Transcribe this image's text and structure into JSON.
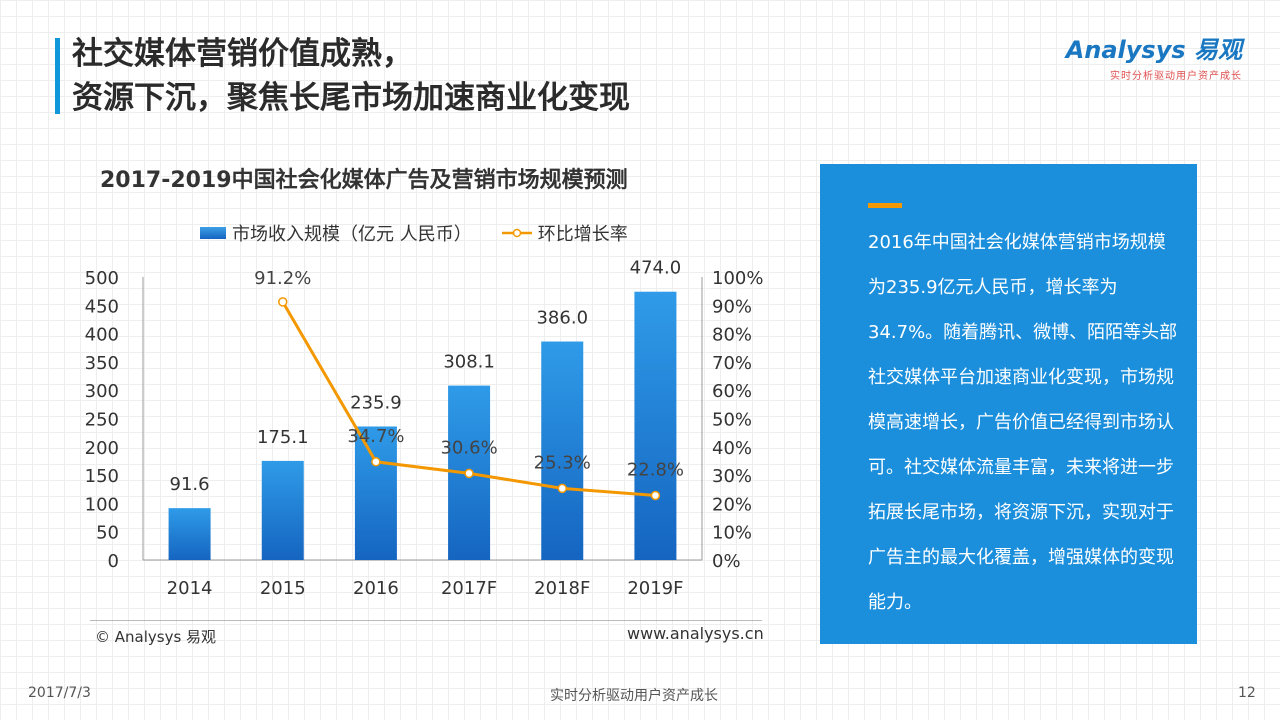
{
  "header": {
    "title_line1": "社交媒体营销价值成熟，",
    "title_line2": "资源下沉，聚焦长尾市场加速商业化变现"
  },
  "logo": {
    "name": "Analysys 易观",
    "tagline": "实时分析驱动用户资产成长"
  },
  "chart_data": {
    "type": "bar",
    "title": "2017-2019中国社会化媒体广告及营销市场规模预测",
    "categories": [
      "2014",
      "2015",
      "2016",
      "2017F",
      "2018F",
      "2019F"
    ],
    "series": [
      {
        "name": "市场收入规模（亿元 人民币）",
        "type": "bar",
        "axis": "left",
        "values": [
          91.6,
          175.1,
          235.9,
          308.1,
          386.0,
          474.0
        ],
        "labels": [
          "91.6",
          "175.1",
          "235.9",
          "308.1",
          "386.0",
          "474.0"
        ]
      },
      {
        "name": "环比增长率",
        "type": "line",
        "axis": "right",
        "values": [
          null,
          91.2,
          34.7,
          30.6,
          25.3,
          22.8
        ],
        "labels": [
          "",
          "91.2%",
          "34.7%",
          "30.6%",
          "25.3%",
          "22.8%"
        ]
      }
    ],
    "y_left": {
      "min": 0,
      "max": 500,
      "ticks": [
        "0",
        "50",
        "100",
        "150",
        "200",
        "250",
        "300",
        "350",
        "400",
        "450",
        "500"
      ]
    },
    "y_right": {
      "min": 0,
      "max": 100,
      "ticks": [
        "0%",
        "10%",
        "20%",
        "30%",
        "40%",
        "50%",
        "60%",
        "70%",
        "80%",
        "90%",
        "100%"
      ]
    },
    "legend_position": "top",
    "colors": {
      "bar": "#1a7fd6",
      "line": "#f39800"
    }
  },
  "source": {
    "copyright": "© Analysys 易观",
    "website": "www.analysys.cn"
  },
  "panel": {
    "text": "2016年中国社会化媒体营销市场规模为235.9亿元人民币，增长率为34.7%。随着腾讯、微博、陌陌等头部社交媒体平台加速商业化变现，市场规模高速增长，广告价值已经得到市场认可。社交媒体流量丰富，未来将进一步拓展长尾市场，将资源下沉，实现对于广告主的最大化覆盖，增强媒体的变现能力。",
    "bg": "#1b8fdc",
    "accent": "#f39800"
  },
  "footer": {
    "date": "2017/7/3",
    "tagline": "实时分析驱动用户资产成长",
    "page": "12"
  }
}
